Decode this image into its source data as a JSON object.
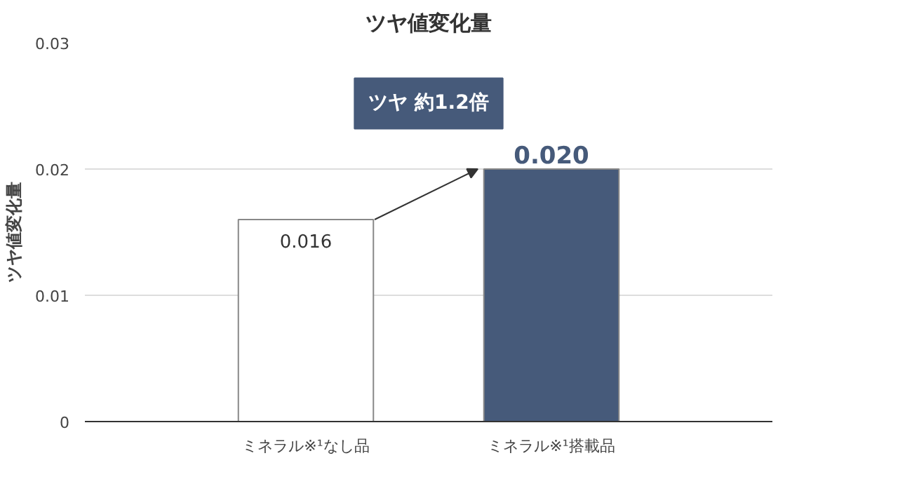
{
  "chart_data": {
    "type": "bar",
    "title": "ツヤ値変化量",
    "ylabel": "ツヤ値変化量",
    "categories": [
      "ミネラル※¹なし品",
      "ミネラル※¹搭載品"
    ],
    "values": [
      0.016,
      0.02
    ],
    "colors": [
      "#ffffff",
      "#465a7a"
    ],
    "value_labels": [
      "0.016",
      "0.020"
    ],
    "ylim": [
      0,
      0.03
    ],
    "yticks": [
      0,
      0.01,
      0.02,
      0.03
    ],
    "grid": "y",
    "annotations": [
      "ツヤ 約1.2倍"
    ]
  }
}
